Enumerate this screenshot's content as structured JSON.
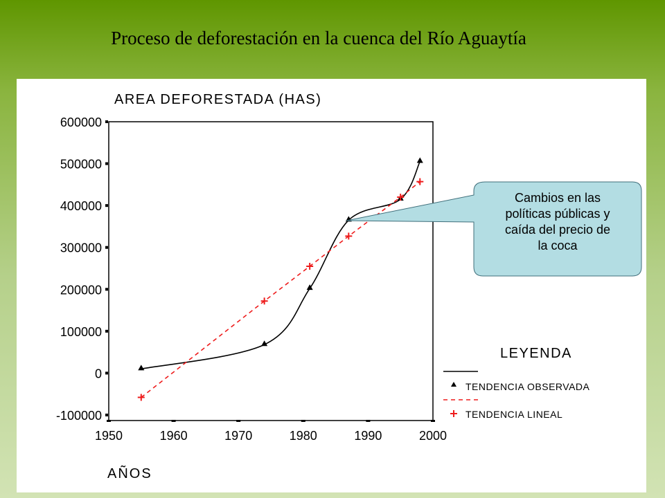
{
  "slide": {
    "title": "Proceso de deforestación en la cuenca del Río Aguaytía"
  },
  "chart_data": {
    "type": "line",
    "title": "AREA DEFORESTADA (HAS)",
    "xlabel": "AÑOS",
    "ylabel": "",
    "xlim": [
      1950,
      2000
    ],
    "ylim": [
      -100000,
      600000
    ],
    "x_ticks": [
      1950,
      1960,
      1970,
      1980,
      1990,
      2000
    ],
    "y_ticks": [
      600000,
      500000,
      400000,
      300000,
      200000,
      100000,
      0,
      -100000
    ],
    "grid": false,
    "legend_position": "bottom-right",
    "legend_title": "LEYENDA",
    "series": [
      {
        "name": "TENDENCIA OBSERVADA",
        "color": "#000000",
        "marker": "triangle",
        "line": "solid-smooth",
        "x": [
          1955,
          1974,
          1981,
          1987,
          1995,
          1998
        ],
        "y": [
          10000,
          68000,
          202000,
          365000,
          415000,
          505000
        ]
      },
      {
        "name": "TENDENCIA LINEAL",
        "color": "#ee1c1c",
        "marker": "plus",
        "line": "dashed",
        "x": [
          1955,
          1974,
          1981,
          1987,
          1995,
          1998
        ],
        "y": [
          -58000,
          172000,
          255000,
          327000,
          420000,
          457000
        ]
      }
    ],
    "annotation": {
      "text_lines": [
        "Cambios en las",
        "políticas públicas y",
        "caída del precio de",
        "la coca"
      ],
      "points_to_x": 1987,
      "points_to_y": 365000
    }
  }
}
